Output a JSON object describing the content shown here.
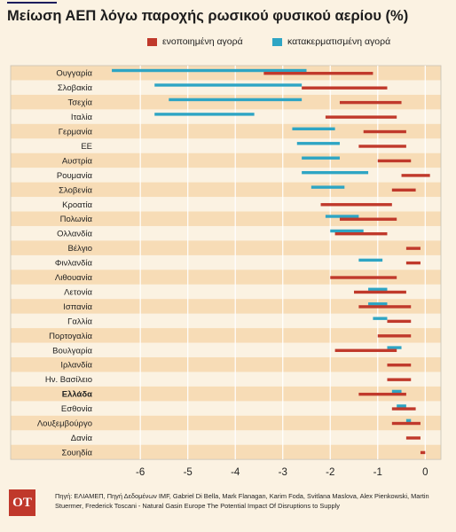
{
  "title": "Μείωση ΑΕΠ λόγω παροχής ρωσικού φυσικού αερίου (%)",
  "legend": [
    {
      "label": "ενοποιημένη αγορά",
      "color": "#c0392b"
    },
    {
      "label": "κατακερματισμένη αγορά",
      "color": "#2ea5c4"
    }
  ],
  "colors": {
    "integrated": "#c0392b",
    "fragmented": "#2ea5c4",
    "band": "#f7dcb6",
    "background": "#fbf2e2"
  },
  "logo_text": "ΟΤ",
  "source": "Πηγή: ΕΛΙΑΜΕΠ, Πηγή Δεδομένων IMF, Gabriel Di Bella, Mark Flanagan, Karim Foda, Svitlana Maslova, Alex Pienkowski, Martin Stuermer, Frederick Toscani - Natural Gasin Europe The Potential Impact Of Disruptions to Supply",
  "chart_data": {
    "type": "range-bar",
    "xlim": [
      -6.9,
      0.2
    ],
    "xticks": [
      -6,
      -5,
      -4,
      -3,
      -2,
      -1,
      0
    ],
    "xtick_labels": [
      "-6",
      "-5",
      "-4",
      "-3",
      "-2",
      "-1",
      "0"
    ],
    "grid": true,
    "legend_position": "top-right",
    "bold_categories": [
      "Ελλάδα"
    ],
    "categories": [
      "Ουγγαρία",
      "Σλοβακία",
      "Τσεχία",
      "Ιταλία",
      "Γερμανία",
      "ΕΕ",
      "Αυστρία",
      "Ρουμανία",
      "Σλοβενία",
      "Κροατία",
      "Πολωνία",
      "Ολλανδία",
      "Βέλγιο",
      "Φινλανδία",
      "Λιθουανία",
      "Λετονία",
      "Ισπανία",
      "Γαλλία",
      "Πορτογαλία",
      "Βουλγαρία",
      "Ιρλανδία",
      "Ην. Βασίλειο",
      "Ελλάδα",
      "Εσθονία",
      "Λουξεμβούργο",
      "Δανία",
      "Σουηδία"
    ],
    "series": [
      {
        "name": "ενοποιημένη αγορά",
        "ranges": [
          [
            -3.4,
            -1.1
          ],
          [
            -2.6,
            -0.8
          ],
          [
            -1.8,
            -0.5
          ],
          [
            -2.1,
            -0.6
          ],
          [
            -1.3,
            -0.4
          ],
          [
            -1.4,
            -0.4
          ],
          [
            -1.0,
            -0.3
          ],
          [
            -0.5,
            0.1
          ],
          [
            -0.7,
            -0.2
          ],
          [
            -2.2,
            -0.7
          ],
          [
            -1.8,
            -0.6
          ],
          [
            -1.9,
            -0.8
          ],
          [
            -0.4,
            -0.1
          ],
          [
            -0.4,
            -0.1
          ],
          [
            -2.0,
            -0.6
          ],
          [
            -1.5,
            -0.4
          ],
          [
            -1.4,
            -0.3
          ],
          [
            -0.8,
            -0.3
          ],
          [
            -1.0,
            -0.3
          ],
          [
            -1.9,
            -0.6
          ],
          [
            -0.8,
            -0.3
          ],
          [
            -0.8,
            -0.3
          ],
          [
            -1.4,
            -0.4
          ],
          [
            -0.7,
            -0.2
          ],
          [
            -0.7,
            -0.1
          ],
          [
            -0.4,
            -0.1
          ],
          [
            -0.1,
            0.0
          ]
        ]
      },
      {
        "name": "κατακερματισμένη αγορά",
        "ranges": [
          [
            -6.6,
            -2.5
          ],
          [
            -5.7,
            -2.6
          ],
          [
            -5.4,
            -2.6
          ],
          [
            -5.7,
            -3.6
          ],
          [
            -2.8,
            -1.9
          ],
          [
            -2.7,
            -1.8
          ],
          [
            -2.6,
            -1.8
          ],
          [
            -2.6,
            -1.2
          ],
          [
            -2.4,
            -1.7
          ],
          null,
          [
            -2.1,
            -1.4
          ],
          [
            -2.0,
            -1.3
          ],
          null,
          [
            -1.4,
            -0.9
          ],
          null,
          [
            -1.2,
            -0.8
          ],
          [
            -1.2,
            -0.8
          ],
          [
            -1.1,
            -0.8
          ],
          null,
          [
            -0.8,
            -0.5
          ],
          null,
          null,
          [
            -0.7,
            -0.5
          ],
          [
            -0.6,
            -0.4
          ],
          [
            -0.4,
            -0.3
          ],
          null,
          null
        ]
      }
    ]
  }
}
